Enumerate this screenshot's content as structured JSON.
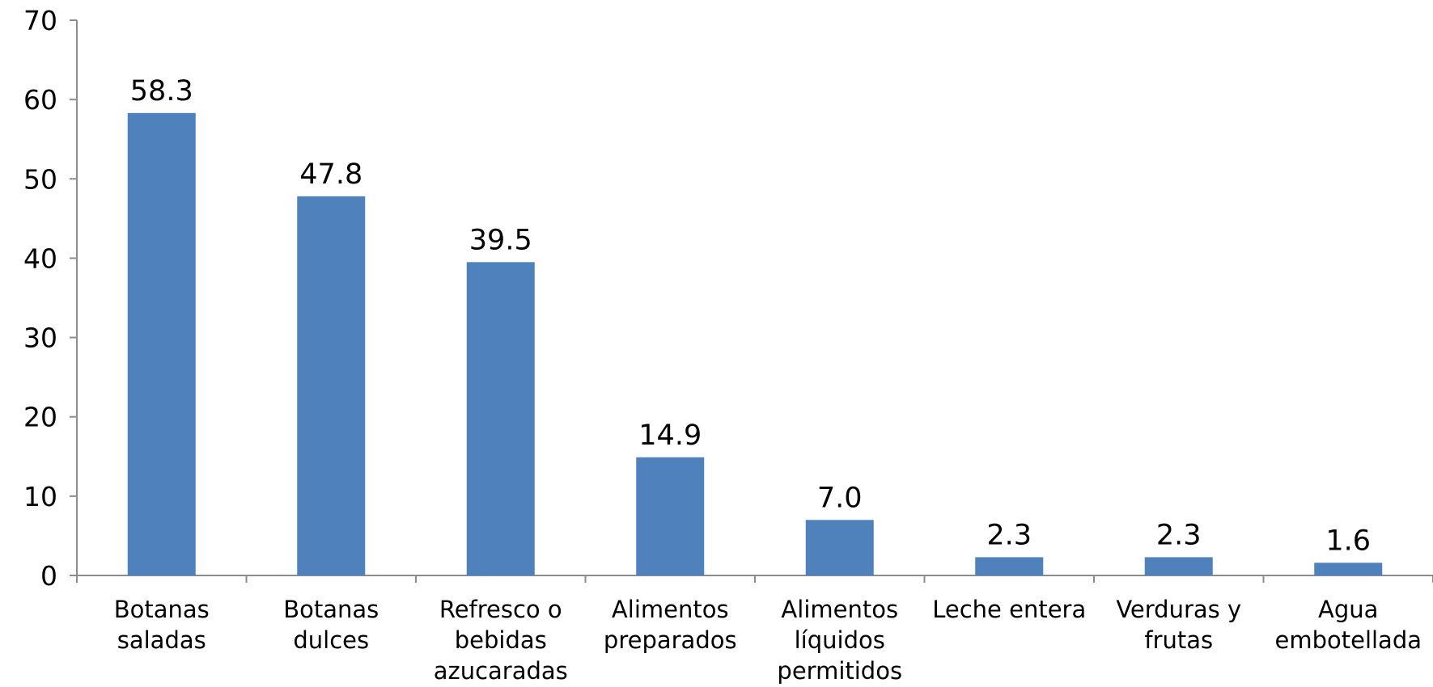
{
  "chart_data": {
    "type": "bar",
    "categories": [
      [
        "Botanas",
        "saladas"
      ],
      [
        "Botanas",
        "dulces"
      ],
      [
        "Refresco o",
        "bebidas",
        "azucaradas"
      ],
      [
        "Alimentos",
        "preparados"
      ],
      [
        "Alimentos",
        "líquidos",
        "permitidos"
      ],
      [
        "Leche entera"
      ],
      [
        "Verduras y",
        "frutas"
      ],
      [
        "Agua",
        "embotellada"
      ]
    ],
    "values": [
      58.3,
      47.8,
      39.5,
      14.9,
      7.0,
      2.3,
      2.3,
      1.6
    ],
    "value_labels": [
      "58.3",
      "47.8",
      "39.5",
      "14.9",
      "7.0",
      "2.3",
      "2.3",
      "1.6"
    ],
    "ylim": [
      0,
      70
    ],
    "yticks": [
      "0",
      "10",
      "20",
      "30",
      "40",
      "50",
      "60",
      "70"
    ],
    "grid": false,
    "legend": "none",
    "bar_color": "#4f81bd",
    "axis_color": "#8c8c8c"
  }
}
